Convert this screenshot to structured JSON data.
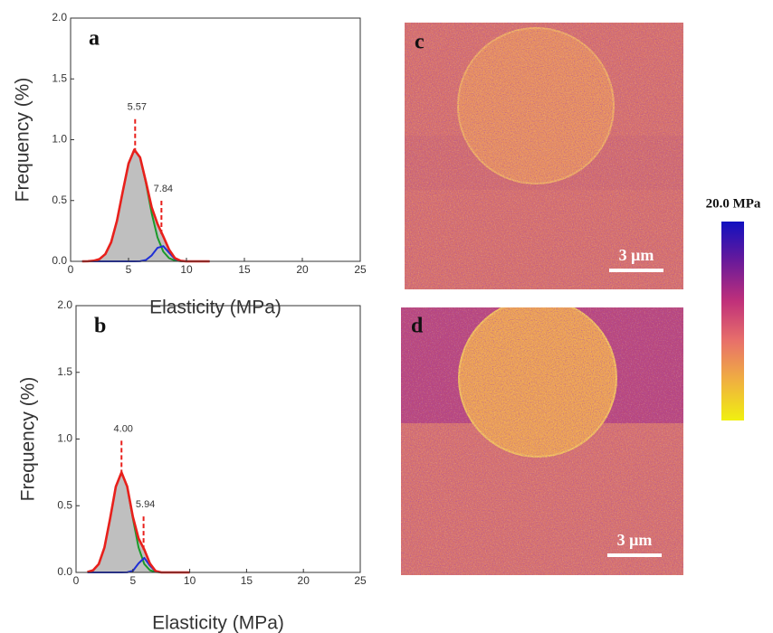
{
  "chart_data": [
    {
      "type": "line",
      "label": "a",
      "x_label": "Elasticity (MPa)",
      "y_label": "Frequency (%)",
      "xlim": [
        0,
        25
      ],
      "ylim": [
        0,
        2
      ],
      "xticks": [
        0,
        5,
        10,
        15,
        20,
        25
      ],
      "yticks": [
        {
          "value": 0,
          "label": "0.0"
        },
        {
          "value": 0.5,
          "label": "0.5"
        },
        {
          "value": 1,
          "label": "1.0"
        },
        {
          "value": 1.5,
          "label": "1.5"
        },
        {
          "value": 2,
          "label": "2.0"
        }
      ],
      "x": [
        1,
        1.5,
        2,
        2.5,
        3,
        3.5,
        4,
        4.5,
        5,
        5.5,
        6,
        6.5,
        7,
        7.5,
        8,
        8.5,
        9,
        9.5,
        10,
        10.5,
        11,
        11.5,
        12
      ],
      "series": [
        {
          "color": "#1a9a2a",
          "values": [
            0,
            0.001,
            0.005,
            0.019,
            0.06,
            0.157,
            0.333,
            0.573,
            0.804,
            0.918,
            0.853,
            0.644,
            0.395,
            0.197,
            0.08,
            0.026,
            0.007,
            0.001,
            0,
            0,
            0,
            0,
            0
          ]
        },
        {
          "color": "#1f2fd6",
          "values": [
            0,
            0,
            0,
            0,
            0,
            0,
            0,
            0,
            0,
            0,
            0.001,
            0.011,
            0.049,
            0.111,
            0.125,
            0.071,
            0.02,
            0.003,
            0,
            0,
            0,
            0,
            0
          ]
        },
        {
          "color": "#e8201c",
          "fill": "#bfbfbf",
          "values": [
            0,
            0.001,
            0.005,
            0.019,
            0.06,
            0.157,
            0.333,
            0.573,
            0.804,
            0.918,
            0.854,
            0.655,
            0.444,
            0.308,
            0.205,
            0.097,
            0.027,
            0.004,
            0,
            0,
            0,
            0,
            0
          ]
        }
      ],
      "peaks": [
        {
          "value": 5.57,
          "label": "5.57"
        },
        {
          "value": 7.84,
          "label": "7.84"
        }
      ],
      "peak_color": "#e8201c"
    },
    {
      "type": "line",
      "label": "b",
      "x_label": "Elasticity (MPa)",
      "y_label": "Frequency (%)",
      "xlim": [
        0,
        25
      ],
      "ylim": [
        0,
        2
      ],
      "xticks": [
        0,
        5,
        10,
        15,
        20,
        25
      ],
      "yticks": [
        {
          "value": 0,
          "label": "0.0"
        },
        {
          "value": 0.5,
          "label": "0.5"
        },
        {
          "value": 1,
          "label": "1.0"
        },
        {
          "value": 1.5,
          "label": "1.5"
        },
        {
          "value": 2,
          "label": "2.0"
        }
      ],
      "x": [
        1,
        1.5,
        2,
        2.5,
        3,
        3.5,
        4,
        4.5,
        5,
        5.5,
        6,
        6.5,
        7,
        7.5,
        8,
        8.5,
        9,
        9.5,
        10
      ],
      "series": [
        {
          "color": "#1a9a2a",
          "values": [
            0.003,
            0.016,
            0.063,
            0.187,
            0.405,
            0.643,
            0.75,
            0.643,
            0.405,
            0.187,
            0.063,
            0.016,
            0.003,
            0,
            0,
            0,
            0,
            0,
            0
          ]
        },
        {
          "color": "#1f2fd6",
          "values": [
            0,
            0,
            0,
            0,
            0,
            0,
            0,
            0.001,
            0.012,
            0.068,
            0.109,
            0.051,
            0.007,
            0,
            0,
            0,
            0,
            0,
            0
          ]
        },
        {
          "color": "#e8201c",
          "fill": "#bfbfbf",
          "values": [
            0.003,
            0.016,
            0.063,
            0.187,
            0.405,
            0.643,
            0.75,
            0.644,
            0.417,
            0.255,
            0.172,
            0.067,
            0.01,
            0,
            0,
            0,
            0,
            0,
            0
          ]
        }
      ],
      "peaks": [
        {
          "value": 4,
          "label": "4.00"
        },
        {
          "value": 5.94,
          "label": "5.94"
        }
      ],
      "peak_color": "#e8201c"
    }
  ],
  "images": [
    {
      "label": "c",
      "scale_bar": "3 μm"
    },
    {
      "label": "d",
      "scale_bar": "3 μm"
    }
  ],
  "colorbar": {
    "label": "20.0 MPa"
  }
}
